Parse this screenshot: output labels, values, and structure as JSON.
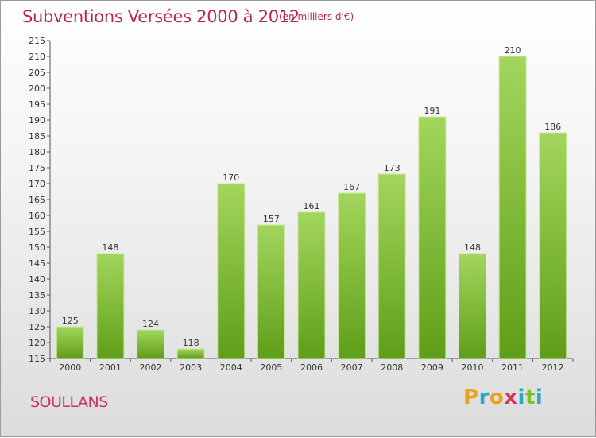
{
  "title": "Subventions Versées 2000 à 2012",
  "subtitle": "(en milliers d'€)",
  "commune": "SOULLANS",
  "logo": {
    "letters": [
      "P",
      "r",
      "o",
      "x",
      "i",
      "t",
      "i"
    ],
    "colors": [
      "#e8a21d",
      "#2aa7c9",
      "#e8a21d",
      "#d6345f",
      "#2aa7c9",
      "#7bbf2a",
      "#2aa7c9"
    ]
  },
  "colors": {
    "bar_top": "#a3d65c",
    "bar_bottom": "#5f9e18",
    "title": "#b5245a"
  },
  "chart_data": {
    "type": "bar",
    "categories": [
      "2000",
      "2001",
      "2002",
      "2003",
      "2004",
      "2005",
      "2006",
      "2007",
      "2008",
      "2009",
      "2010",
      "2011",
      "2012"
    ],
    "values": [
      125,
      148,
      124,
      118,
      170,
      157,
      161,
      167,
      173,
      191,
      148,
      210,
      186
    ],
    "ylim": [
      115,
      215
    ],
    "yticks": [
      115,
      120,
      125,
      130,
      135,
      140,
      145,
      150,
      155,
      160,
      165,
      170,
      175,
      180,
      185,
      190,
      195,
      200,
      205,
      210,
      215
    ],
    "grid": false,
    "xlabel": "",
    "ylabel": ""
  }
}
